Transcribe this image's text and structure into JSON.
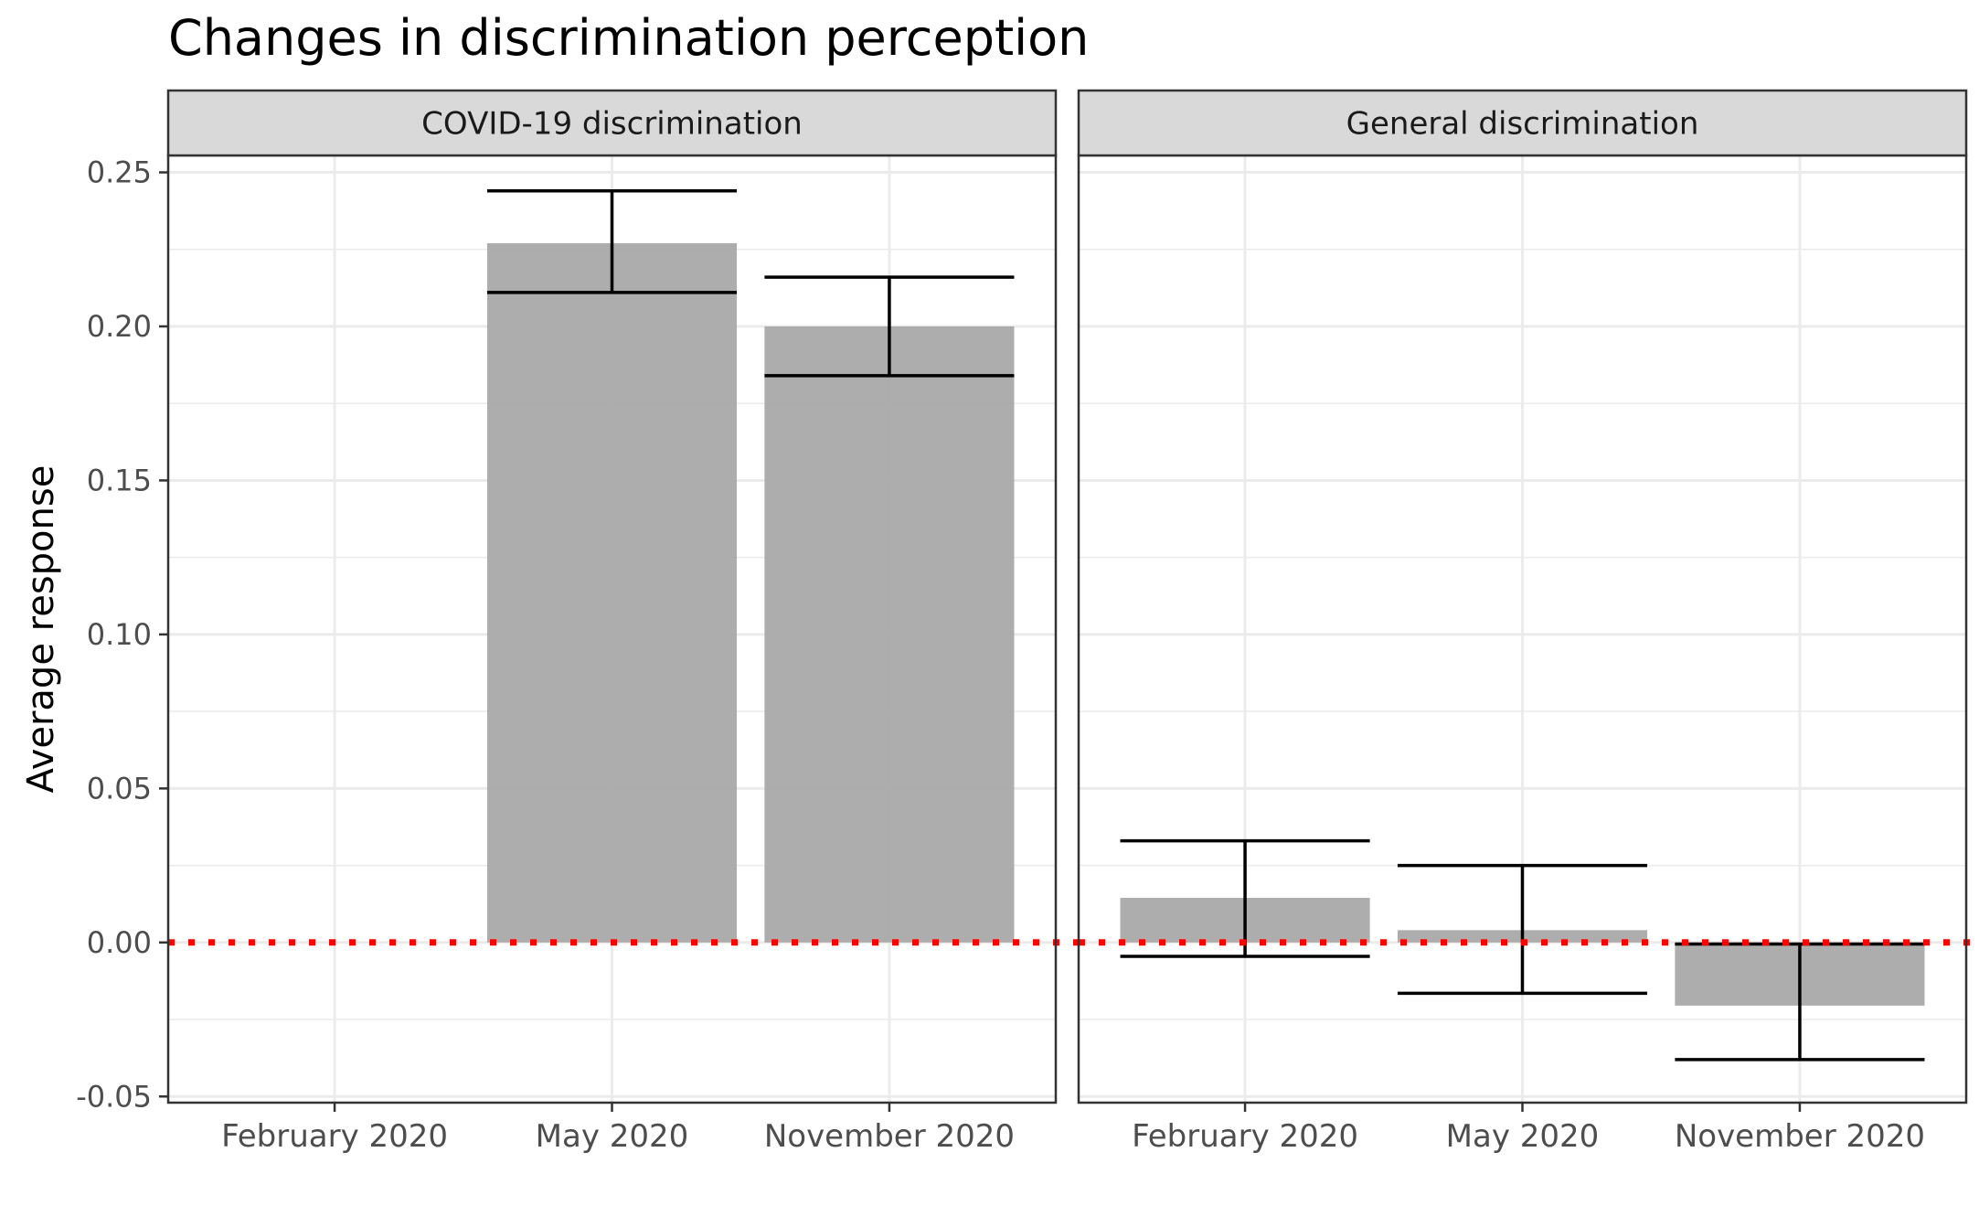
{
  "chart_data": {
    "type": "bar",
    "title": "Changes in discrimination perception",
    "ylabel": "Average response",
    "xlabel": "",
    "ylim": [
      -0.052,
      0.2555
    ],
    "yticks": [
      -0.05,
      0.0,
      0.05,
      0.1,
      0.15,
      0.2,
      0.25
    ],
    "ytick_labels": [
      "-0.05",
      "0.00",
      "0.05",
      "0.10",
      "0.15",
      "0.20",
      "0.25"
    ],
    "grid": true,
    "reference_line": {
      "y": 0,
      "style": "dotted",
      "color": "#ff0000"
    },
    "bar_color": "#a9a9a9",
    "categories": [
      "February 2020",
      "May 2020",
      "November 2020"
    ],
    "panels": [
      {
        "label": "COVID-19 discrimination",
        "values": [
          null,
          0.227,
          0.2
        ],
        "ci_low": [
          null,
          0.211,
          0.184
        ],
        "ci_high": [
          null,
          0.244,
          0.216
        ]
      },
      {
        "label": "General discrimination",
        "values": [
          0.0145,
          0.004,
          -0.0205
        ],
        "ci_low": [
          -0.0045,
          -0.0165,
          -0.038
        ],
        "ci_high": [
          0.033,
          0.025,
          -0.0005
        ]
      }
    ]
  }
}
